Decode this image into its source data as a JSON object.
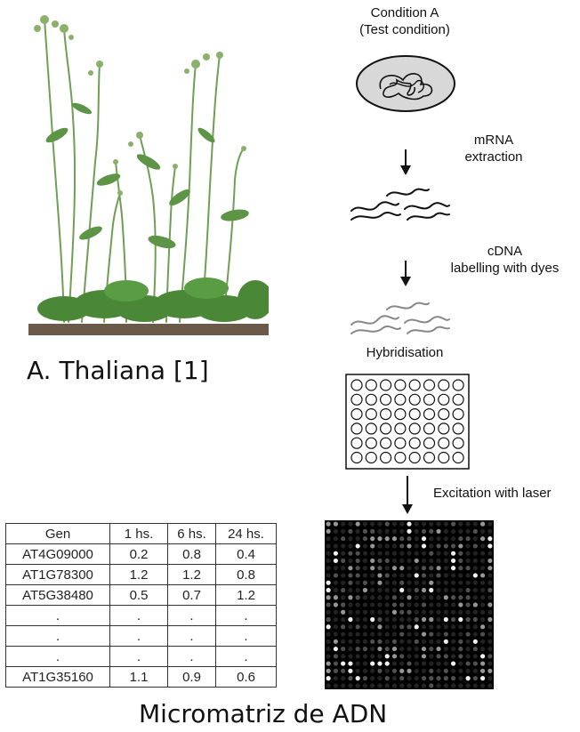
{
  "captions": {
    "plant": "A. Thaliana [1]",
    "matrix": "Micromatriz de ADN"
  },
  "flow": {
    "condition_line1": "Condition A",
    "condition_line2": "(Test condition)",
    "mrna_line1": "mRNA",
    "mrna_line2": "extraction",
    "cdna_line1": "cDNA",
    "cdna_line2": "labelling with dyes",
    "hybridisation": "Hybridisation",
    "laser": "Excitation with laser"
  },
  "table": {
    "headers": [
      "Gen",
      "1 hs.",
      "6 hs.",
      "24 hs."
    ],
    "rows": [
      [
        "AT4G09000",
        "0.2",
        "0.8",
        "0.4"
      ],
      [
        "AT1G78300",
        "1.2",
        "1.2",
        "0.8"
      ],
      [
        "AT5G38480",
        "0.5",
        "0.7",
        "1.2"
      ],
      [
        ".",
        ".",
        ".",
        "."
      ],
      [
        ".",
        ".",
        ".",
        "."
      ],
      [
        ".",
        ".",
        ".",
        "."
      ],
      [
        "AT1G35160",
        "1.1",
        "0.9",
        "0.6"
      ]
    ]
  },
  "colors": {
    "plant_green": "#4f8a3a",
    "leaf_dark": "#3f7a2f",
    "soil": "#6b5a4a"
  }
}
